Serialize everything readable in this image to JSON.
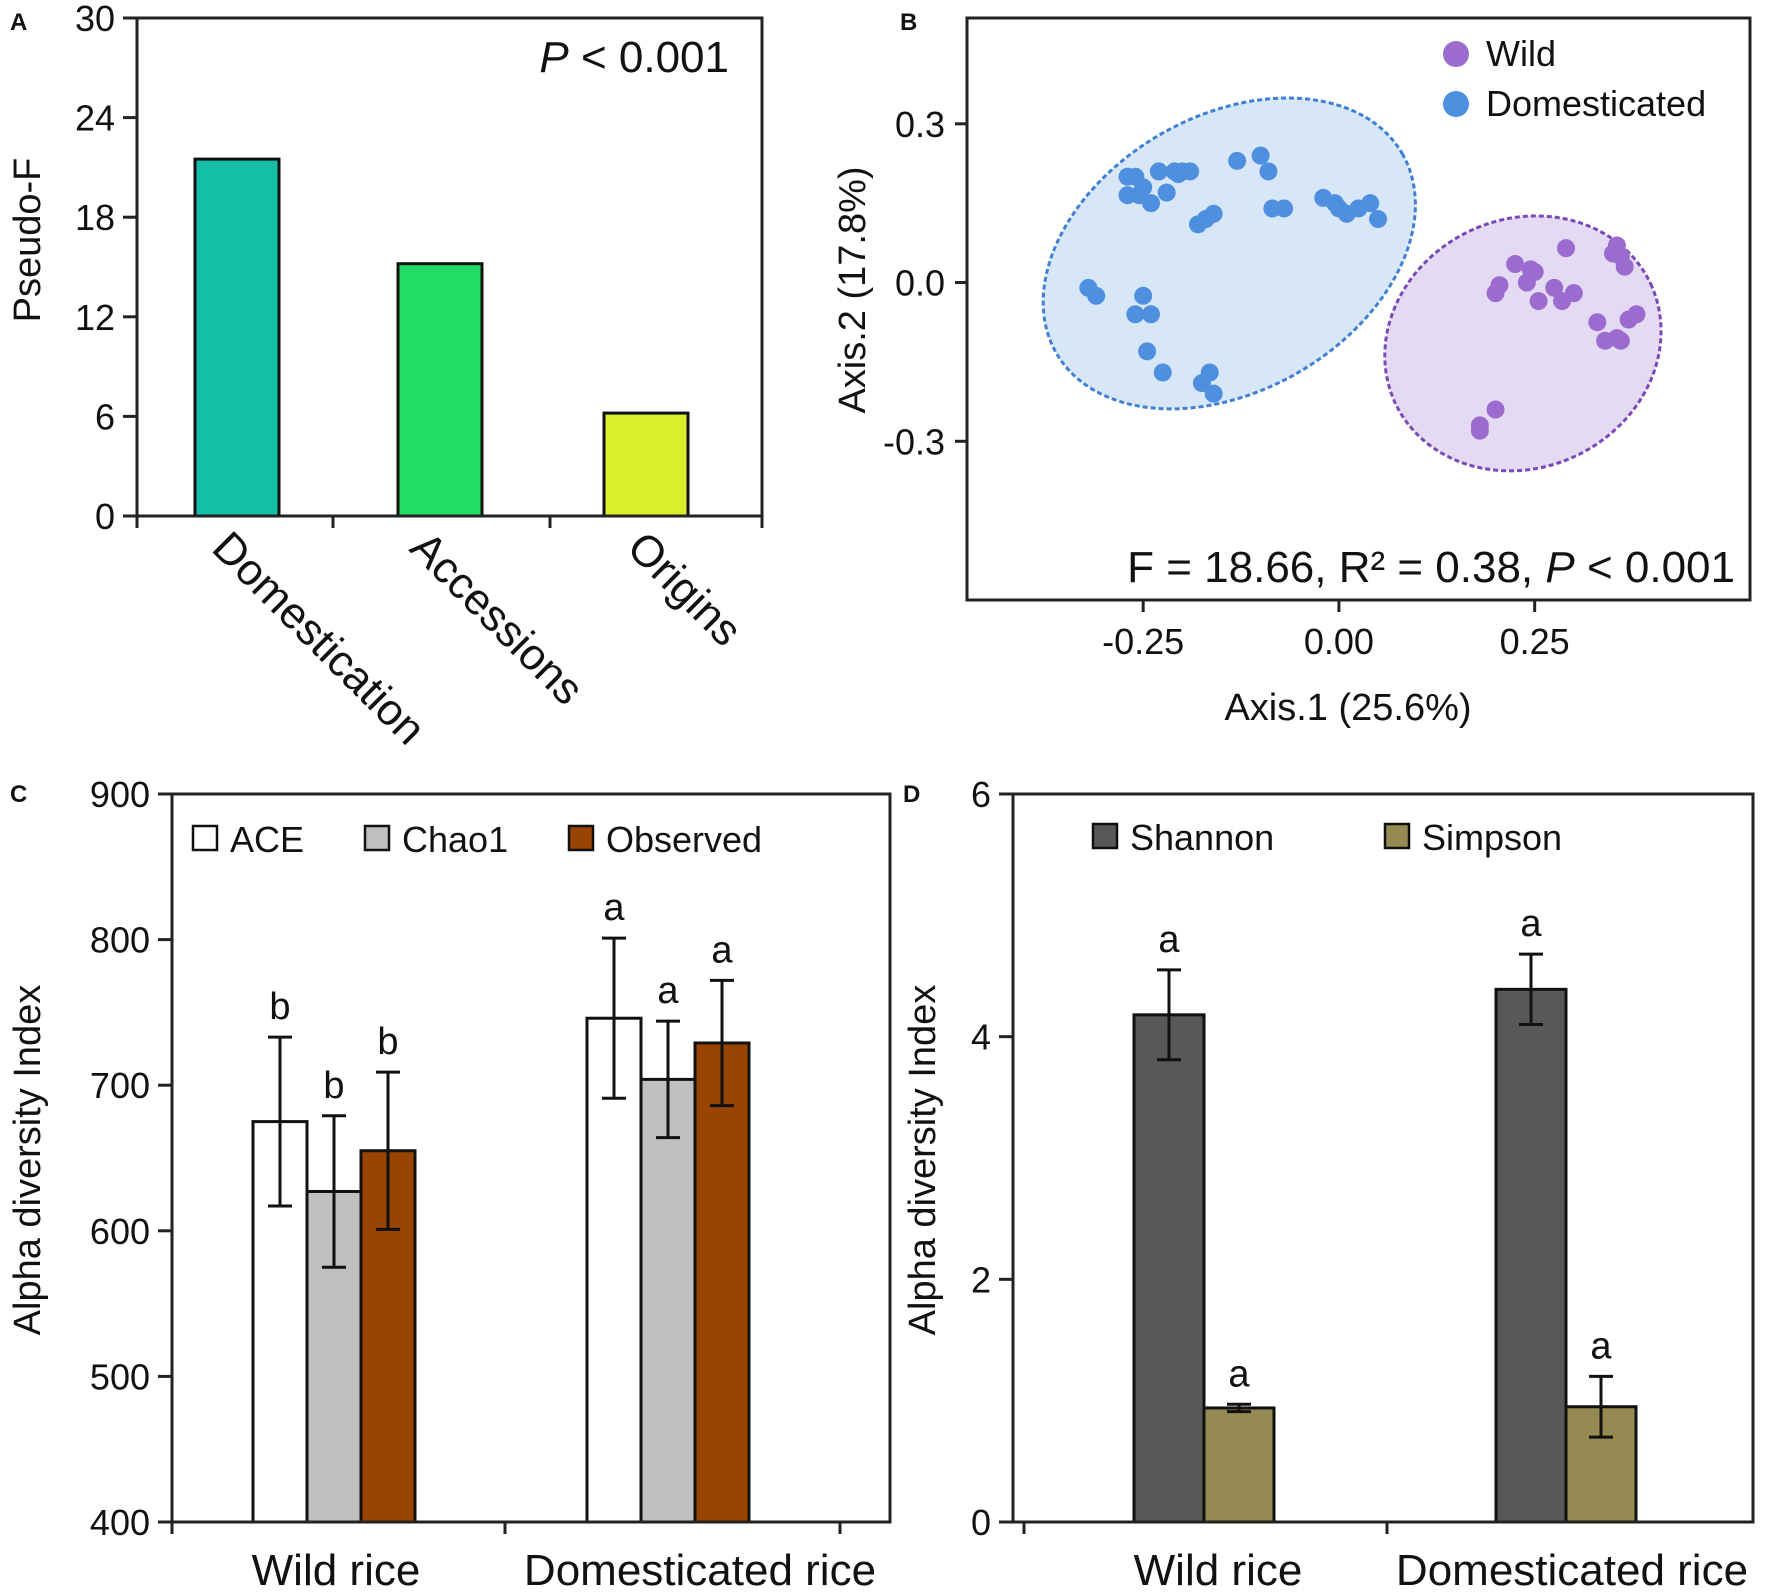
{
  "chart_data": [
    {
      "panel": "A",
      "type": "bar",
      "ylabel": "Pseudo-F",
      "ylim": [
        0,
        30
      ],
      "yticks": [
        0,
        6,
        12,
        18,
        24,
        30
      ],
      "categories": [
        "Domestication",
        "Accessions",
        "Origins"
      ],
      "values": [
        21.5,
        15.2,
        6.2
      ],
      "colors": [
        "#14bfa6",
        "#22dd63",
        "#d8ef2a"
      ],
      "annotation_italic": "P",
      "annotation_rest": " < 0.001"
    },
    {
      "panel": "B",
      "type": "scatter",
      "xlabel": "Axis.1 (25.6%)",
      "ylabel": "Axis.2 (17.8%)",
      "xlim": [
        -0.475,
        0.525
      ],
      "ylim": [
        -0.6,
        0.5
      ],
      "xticks": [
        -0.25,
        0.0,
        0.25
      ],
      "xtick_labels": [
        "-0.25",
        "0.00",
        "0.25"
      ],
      "yticks": [
        -0.3,
        0.0,
        0.3
      ],
      "ytick_labels": [
        "-0.3",
        "0.0",
        "0.3"
      ],
      "annotation_prefix": "F = 18.66, R² = 0.38, ",
      "annotation_italic": "P",
      "annotation_suffix": " < 0.001",
      "series": [
        {
          "name": "Wild",
          "color": "#9b6bcf",
          "fill": "#e4daf3",
          "ring": "#7a48b8",
          "ellipse": {
            "cx": 0.235,
            "cy": -0.115,
            "rx": 0.18,
            "ry": 0.235,
            "angle": 25
          },
          "points": [
            [
              0.18,
              -0.27
            ],
            [
              0.18,
              -0.28
            ],
            [
              0.2,
              -0.24
            ],
            [
              0.2,
              -0.02
            ],
            [
              0.205,
              -0.005
            ],
            [
              0.225,
              0.035
            ],
            [
              0.24,
              0.0
            ],
            [
              0.245,
              0.025
            ],
            [
              0.25,
              0.02
            ],
            [
              0.255,
              -0.035
            ],
            [
              0.275,
              -0.01
            ],
            [
              0.285,
              -0.035
            ],
            [
              0.29,
              0.065
            ],
            [
              0.3,
              -0.02
            ],
            [
              0.33,
              -0.075
            ],
            [
              0.34,
              -0.11
            ],
            [
              0.35,
              0.055
            ],
            [
              0.355,
              0.07
            ],
            [
              0.355,
              -0.105
            ],
            [
              0.36,
              0.05
            ],
            [
              0.36,
              -0.11
            ],
            [
              0.365,
              0.03
            ],
            [
              0.37,
              -0.07
            ],
            [
              0.38,
              -0.06
            ]
          ]
        },
        {
          "name": "Domesticated",
          "color": "#4f8fe0",
          "fill": "#d8e7f7",
          "ring": "#3f7fd4",
          "ellipse": {
            "cx": -0.14,
            "cy": 0.055,
            "rx": 0.255,
            "ry": 0.26,
            "angle": 30
          },
          "points": [
            [
              -0.32,
              -0.01
            ],
            [
              -0.31,
              -0.025
            ],
            [
              -0.27,
              0.2
            ],
            [
              -0.27,
              0.165
            ],
            [
              -0.26,
              0.2
            ],
            [
              -0.26,
              -0.06
            ],
            [
              -0.255,
              0.165
            ],
            [
              -0.25,
              0.18
            ],
            [
              -0.25,
              -0.025
            ],
            [
              -0.245,
              -0.13
            ],
            [
              -0.24,
              0.15
            ],
            [
              -0.24,
              -0.06
            ],
            [
              -0.23,
              0.21
            ],
            [
              -0.225,
              -0.17
            ],
            [
              -0.22,
              0.17
            ],
            [
              -0.21,
              0.21
            ],
            [
              -0.205,
              0.205
            ],
            [
              -0.2,
              0.21
            ],
            [
              -0.19,
              0.21
            ],
            [
              -0.18,
              0.11
            ],
            [
              -0.175,
              -0.19
            ],
            [
              -0.17,
              0.12
            ],
            [
              -0.165,
              -0.17
            ],
            [
              -0.16,
              -0.21
            ],
            [
              -0.16,
              0.13
            ],
            [
              -0.13,
              0.23
            ],
            [
              -0.1,
              0.24
            ],
            [
              -0.09,
              0.21
            ],
            [
              -0.085,
              0.14
            ],
            [
              -0.07,
              0.14
            ],
            [
              -0.02,
              0.16
            ],
            [
              -0.005,
              0.15
            ],
            [
              0.0,
              0.14
            ],
            [
              0.01,
              0.13
            ],
            [
              0.025,
              0.14
            ],
            [
              0.04,
              0.15
            ],
            [
              0.05,
              0.12
            ]
          ]
        }
      ]
    },
    {
      "panel": "C",
      "type": "bar",
      "ylabel": "Alpha diversity Index",
      "ylim": [
        400,
        900
      ],
      "yticks": [
        400,
        500,
        600,
        700,
        800,
        900
      ],
      "categories": [
        "Wild rice",
        "Domesticated rice"
      ],
      "series": [
        {
          "name": "ACE",
          "color": "#ffffff",
          "values": [
            675,
            746
          ],
          "errors": [
            58,
            55
          ],
          "letters": [
            "b",
            "a"
          ]
        },
        {
          "name": "Chao1",
          "color": "#c0c0c0",
          "values": [
            627,
            704
          ],
          "errors": [
            52,
            40
          ],
          "letters": [
            "b",
            "a"
          ]
        },
        {
          "name": "Observed",
          "color": "#994400",
          "values": [
            655,
            729
          ],
          "errors": [
            54,
            43
          ],
          "letters": [
            "b",
            "a"
          ]
        }
      ]
    },
    {
      "panel": "D",
      "type": "bar",
      "ylabel": "Alpha diversity Index",
      "ylim": [
        0,
        6
      ],
      "yticks": [
        0,
        2,
        4,
        6
      ],
      "categories": [
        "Wild rice",
        "Domesticated rice"
      ],
      "series": [
        {
          "name": "Shannon",
          "color": "#585858",
          "values": [
            4.18,
            4.39
          ],
          "errors": [
            0.37,
            0.29
          ],
          "letters": [
            "a",
            "a"
          ]
        },
        {
          "name": "Simpson",
          "color": "#958a52",
          "values": [
            0.94,
            0.95
          ],
          "errors": [
            0.03,
            0.25
          ],
          "letters": [
            "a",
            "a"
          ]
        }
      ]
    }
  ]
}
